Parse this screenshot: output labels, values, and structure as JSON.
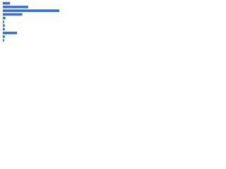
{
  "chart_data": {
    "type": "bar",
    "orientation": "horizontal",
    "categories": [
      null,
      null,
      null,
      null,
      null,
      null,
      null,
      null,
      null,
      null,
      null
    ],
    "values": [
      11,
      39,
      87,
      30,
      4,
      2,
      3,
      3,
      22,
      3,
      2
    ],
    "color": "#3b6fc4",
    "xlim": [
      0,
      100
    ]
  }
}
